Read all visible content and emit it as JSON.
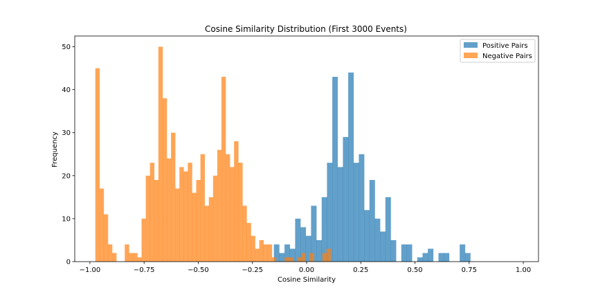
{
  "chart_data": {
    "type": "bar",
    "title": "Cosine Similarity Distribution (First 3000 Events)",
    "xlabel": "Cosine Similarity",
    "ylabel": "Frequency",
    "xlim": [
      -1.07,
      1.07
    ],
    "ylim": [
      0,
      52.5
    ],
    "xticks": [
      "−1.00",
      "−0.75",
      "−0.50",
      "−0.25",
      "0.00",
      "0.25",
      "0.50",
      "0.75",
      "1.00"
    ],
    "xtick_values": [
      -1.0,
      -0.75,
      -0.5,
      -0.25,
      0.0,
      0.25,
      0.5,
      0.75,
      1.0
    ],
    "yticks": [
      "0",
      "10",
      "20",
      "30",
      "40",
      "50"
    ],
    "ytick_values": [
      0,
      10,
      20,
      30,
      40,
      50
    ],
    "legend_position": "top-right",
    "series": [
      {
        "name": "Positive Pairs",
        "color": "#1f77b4",
        "bin_start": -0.2,
        "bin_width": 0.0245,
        "counts": [
          0,
          0,
          4,
          2,
          4,
          3,
          10,
          8,
          6,
          13,
          5,
          15,
          23,
          43,
          22,
          29,
          44,
          23,
          25,
          12,
          19,
          10,
          7,
          15,
          5,
          0,
          4,
          4,
          0,
          1,
          2,
          3,
          0,
          2,
          2,
          0,
          0,
          4,
          2
        ]
      },
      {
        "name": "Negative Pairs",
        "color": "#ff7f0e",
        "bin_start": -0.975,
        "bin_width": 0.0194,
        "counts": [
          45,
          17,
          11,
          4,
          2,
          0,
          0,
          4,
          2,
          2,
          1,
          10,
          20,
          23,
          19,
          50,
          38,
          24,
          30,
          17,
          22,
          21,
          23,
          16,
          19,
          25,
          13,
          15,
          20,
          26,
          43,
          25,
          22,
          28,
          23,
          13,
          9,
          6,
          3,
          5,
          4,
          4,
          1,
          0,
          0,
          1,
          1,
          0,
          1,
          2,
          0,
          2,
          0,
          0,
          2,
          3
        ]
      }
    ]
  }
}
